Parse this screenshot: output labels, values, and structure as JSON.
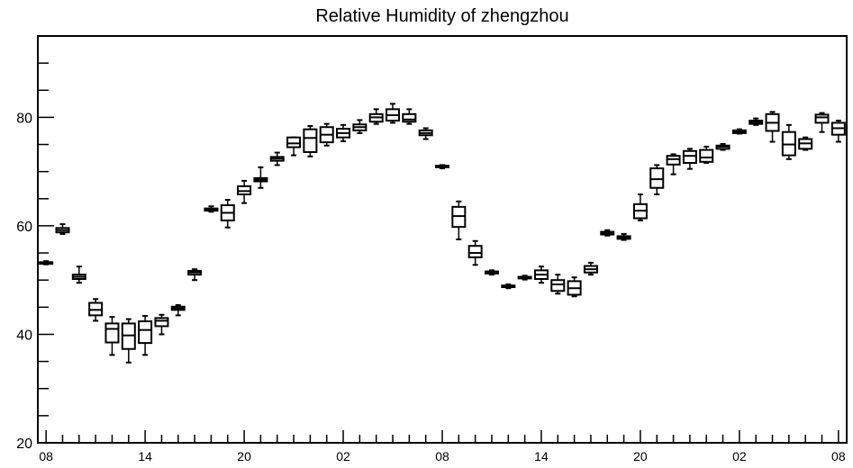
{
  "chart_data": {
    "type": "box",
    "title": "Relative Humidity of zhengzhou",
    "xlabel": "",
    "ylabel": "",
    "ylim": [
      20,
      95
    ],
    "y_ticks": [
      20,
      40,
      60,
      80
    ],
    "x_tick_labels": [
      "08",
      "14",
      "20",
      "02",
      "08",
      "14",
      "20",
      "02",
      "08"
    ],
    "x_tick_positions": [
      0,
      6,
      12,
      18,
      24,
      30,
      36,
      42,
      48
    ],
    "xlim": [
      -0.5,
      48.5
    ],
    "grid": false,
    "legend": "none",
    "boxes": [
      {
        "x": 0,
        "min": 52.9,
        "q1": 53.0,
        "median": 53.2,
        "q3": 53.3,
        "max": 53.5
      },
      {
        "x": 1,
        "min": 58.5,
        "q1": 58.8,
        "median": 59.2,
        "q3": 59.6,
        "max": 60.3
      },
      {
        "x": 2,
        "min": 49.5,
        "q1": 50.2,
        "median": 50.6,
        "q3": 51.0,
        "max": 52.5
      },
      {
        "x": 3,
        "min": 42.5,
        "q1": 43.5,
        "median": 44.5,
        "q3": 45.8,
        "max": 46.5
      },
      {
        "x": 4,
        "min": 36.2,
        "q1": 38.5,
        "median": 41.0,
        "q3": 42.0,
        "max": 43.2
      },
      {
        "x": 5,
        "min": 34.8,
        "q1": 37.3,
        "median": 39.8,
        "q3": 42.0,
        "max": 42.8
      },
      {
        "x": 6,
        "min": 36.2,
        "q1": 38.4,
        "median": 40.8,
        "q3": 42.4,
        "max": 43.4
      },
      {
        "x": 7,
        "min": 40.0,
        "q1": 41.5,
        "median": 42.5,
        "q3": 43.0,
        "max": 43.6
      },
      {
        "x": 8,
        "min": 43.5,
        "q1": 44.5,
        "median": 44.8,
        "q3": 45.1,
        "max": 45.4
      },
      {
        "x": 9,
        "min": 50.0,
        "q1": 51.0,
        "median": 51.4,
        "q3": 51.7,
        "max": 52.0
      },
      {
        "x": 10,
        "min": 62.6,
        "q1": 62.8,
        "median": 63.0,
        "q3": 63.2,
        "max": 63.6
      },
      {
        "x": 11,
        "min": 59.7,
        "q1": 61.0,
        "median": 62.4,
        "q3": 63.8,
        "max": 64.8
      },
      {
        "x": 12,
        "min": 64.2,
        "q1": 65.8,
        "median": 66.4,
        "q3": 67.3,
        "max": 68.3
      },
      {
        "x": 13,
        "min": 67.0,
        "q1": 68.2,
        "median": 68.5,
        "q3": 68.8,
        "max": 70.8
      },
      {
        "x": 14,
        "min": 71.2,
        "q1": 72.0,
        "median": 72.4,
        "q3": 72.7,
        "max": 73.5
      },
      {
        "x": 15,
        "min": 73.0,
        "q1": 74.5,
        "median": 75.2,
        "q3": 76.3,
        "max": 76.3
      },
      {
        "x": 16,
        "min": 72.8,
        "q1": 73.6,
        "median": 76.2,
        "q3": 77.8,
        "max": 78.4
      },
      {
        "x": 17,
        "min": 74.8,
        "q1": 75.4,
        "median": 76.8,
        "q3": 78.2,
        "max": 78.8
      },
      {
        "x": 18,
        "min": 75.6,
        "q1": 76.3,
        "median": 77.1,
        "q3": 77.9,
        "max": 78.6
      },
      {
        "x": 19,
        "min": 77.1,
        "q1": 77.6,
        "median": 78.2,
        "q3": 78.7,
        "max": 79.5
      },
      {
        "x": 20,
        "min": 78.8,
        "q1": 79.2,
        "median": 80.0,
        "q3": 80.6,
        "max": 81.5
      },
      {
        "x": 21,
        "min": 79.0,
        "q1": 79.4,
        "median": 80.4,
        "q3": 81.5,
        "max": 82.5
      },
      {
        "x": 22,
        "min": 78.8,
        "q1": 79.2,
        "median": 79.6,
        "q3": 80.6,
        "max": 81.5
      },
      {
        "x": 23,
        "min": 76.0,
        "q1": 76.7,
        "median": 77.1,
        "q3": 77.6,
        "max": 78.0
      },
      {
        "x": 24,
        "min": 70.6,
        "q1": 70.8,
        "median": 71.0,
        "q3": 71.1,
        "max": 71.2
      },
      {
        "x": 25,
        "min": 57.5,
        "q1": 59.8,
        "median": 61.8,
        "q3": 63.5,
        "max": 64.5
      },
      {
        "x": 26,
        "min": 52.8,
        "q1": 54.2,
        "median": 55.0,
        "q3": 56.3,
        "max": 57.2
      },
      {
        "x": 27,
        "min": 51.0,
        "q1": 51.2,
        "median": 51.4,
        "q3": 51.6,
        "max": 51.8
      },
      {
        "x": 28,
        "min": 48.5,
        "q1": 48.7,
        "median": 48.9,
        "q3": 49.0,
        "max": 49.2
      },
      {
        "x": 29,
        "min": 50.1,
        "q1": 50.3,
        "median": 50.5,
        "q3": 50.6,
        "max": 50.8
      },
      {
        "x": 30,
        "min": 49.5,
        "q1": 50.2,
        "median": 51.0,
        "q3": 51.8,
        "max": 52.5
      },
      {
        "x": 31,
        "min": 47.5,
        "q1": 48.0,
        "median": 49.2,
        "q3": 50.0,
        "max": 51.0
      },
      {
        "x": 32,
        "min": 47.0,
        "q1": 47.3,
        "median": 48.5,
        "q3": 49.8,
        "max": 50.5
      },
      {
        "x": 33,
        "min": 51.0,
        "q1": 51.4,
        "median": 52.0,
        "q3": 52.6,
        "max": 53.2
      },
      {
        "x": 34,
        "min": 58.2,
        "q1": 58.4,
        "median": 58.6,
        "q3": 58.9,
        "max": 59.2
      },
      {
        "x": 35,
        "min": 57.4,
        "q1": 57.6,
        "median": 57.9,
        "q3": 58.1,
        "max": 58.5
      },
      {
        "x": 36,
        "min": 61.0,
        "q1": 61.4,
        "median": 62.8,
        "q3": 64.0,
        "max": 65.8
      },
      {
        "x": 37,
        "min": 65.8,
        "q1": 67.0,
        "median": 68.6,
        "q3": 70.6,
        "max": 71.2
      },
      {
        "x": 38,
        "min": 69.5,
        "q1": 71.3,
        "median": 72.3,
        "q3": 72.9,
        "max": 73.2
      },
      {
        "x": 39,
        "min": 70.5,
        "q1": 71.6,
        "median": 72.9,
        "q3": 73.8,
        "max": 74.2
      },
      {
        "x": 40,
        "min": 71.6,
        "q1": 71.8,
        "median": 72.6,
        "q3": 74.0,
        "max": 74.6
      },
      {
        "x": 41,
        "min": 74.0,
        "q1": 74.2,
        "median": 74.6,
        "q3": 74.8,
        "max": 75.1
      },
      {
        "x": 42,
        "min": 77.0,
        "q1": 77.1,
        "median": 77.4,
        "q3": 77.6,
        "max": 77.8
      },
      {
        "x": 43,
        "min": 78.6,
        "q1": 78.8,
        "median": 79.1,
        "q3": 79.4,
        "max": 79.8
      },
      {
        "x": 44,
        "min": 75.5,
        "q1": 77.5,
        "median": 79.0,
        "q3": 80.6,
        "max": 81.0
      },
      {
        "x": 45,
        "min": 72.3,
        "q1": 73.0,
        "median": 75.0,
        "q3": 77.3,
        "max": 78.6
      },
      {
        "x": 46,
        "min": 74.0,
        "q1": 74.2,
        "median": 75.2,
        "q3": 76.0,
        "max": 76.3
      },
      {
        "x": 47,
        "min": 77.3,
        "q1": 79.0,
        "median": 80.0,
        "q3": 80.5,
        "max": 80.8
      },
      {
        "x": 48,
        "min": 75.5,
        "q1": 76.8,
        "median": 78.0,
        "q3": 79.0,
        "max": 79.4
      }
    ]
  }
}
